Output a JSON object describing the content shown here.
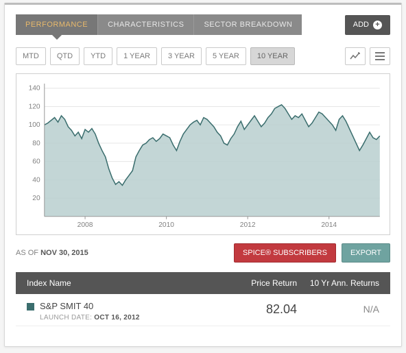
{
  "tabs": [
    {
      "label": "PERFORMANCE",
      "active": true
    },
    {
      "label": "CHARACTERISTICS",
      "active": false
    },
    {
      "label": "SECTOR BREAKDOWN",
      "active": false
    }
  ],
  "add_button": "ADD",
  "ranges": [
    {
      "label": "MTD",
      "active": false
    },
    {
      "label": "QTD",
      "active": false
    },
    {
      "label": "YTD",
      "active": false
    },
    {
      "label": "1 YEAR",
      "active": false
    },
    {
      "label": "3 YEAR",
      "active": false
    },
    {
      "label": "5 YEAR",
      "active": false
    },
    {
      "label": "10 YEAR",
      "active": true
    }
  ],
  "chart": {
    "type": "area",
    "stroke_color": "#3b6e6e",
    "fill_color": "#b9cfcf",
    "fill_opacity": 0.85,
    "background_color": "#ffffff",
    "grid_color": "#e6e6e6",
    "axis_color": "#9a9a9a",
    "label_color": "#808080",
    "label_fontsize": 10,
    "y_ticks": [
      20,
      40,
      60,
      80,
      100,
      120,
      140
    ],
    "ylim": [
      0,
      145
    ],
    "x_ticks": [
      "2008",
      "2010",
      "2012",
      "2014"
    ],
    "x_tick_indices": [
      12,
      36,
      60,
      84
    ],
    "points": [
      100,
      102,
      105,
      108,
      103,
      110,
      106,
      98,
      94,
      88,
      92,
      85,
      95,
      92,
      96,
      90,
      80,
      72,
      65,
      52,
      42,
      35,
      38,
      34,
      40,
      45,
      50,
      65,
      72,
      78,
      80,
      84,
      86,
      82,
      85,
      90,
      88,
      86,
      78,
      72,
      82,
      90,
      95,
      100,
      103,
      105,
      100,
      108,
      106,
      102,
      98,
      92,
      88,
      80,
      78,
      85,
      90,
      98,
      104,
      95,
      100,
      105,
      110,
      104,
      98,
      102,
      108,
      112,
      118,
      120,
      122,
      118,
      112,
      106,
      110,
      108,
      112,
      105,
      98,
      102,
      108,
      114,
      112,
      108,
      104,
      100,
      94,
      106,
      110,
      104,
      96,
      88,
      80,
      72,
      78,
      85,
      92,
      86,
      84,
      88
    ]
  },
  "asof_prefix": "AS OF ",
  "asof_date": "NOV 30, 2015",
  "spice_button": "SPICE® SUBSCRIBERS",
  "export_button": "EXPORT",
  "table": {
    "headers": {
      "name": "Index Name",
      "price": "Price Return",
      "returns": "10 Yr Ann. Returns"
    },
    "row": {
      "swatch_color": "#3b6e6e",
      "name": "S&P SMIT 40",
      "launch_prefix": "LAUNCH DATE: ",
      "launch_date": "OCT 16, 2012",
      "price": "82.04",
      "returns": "N/A"
    }
  }
}
